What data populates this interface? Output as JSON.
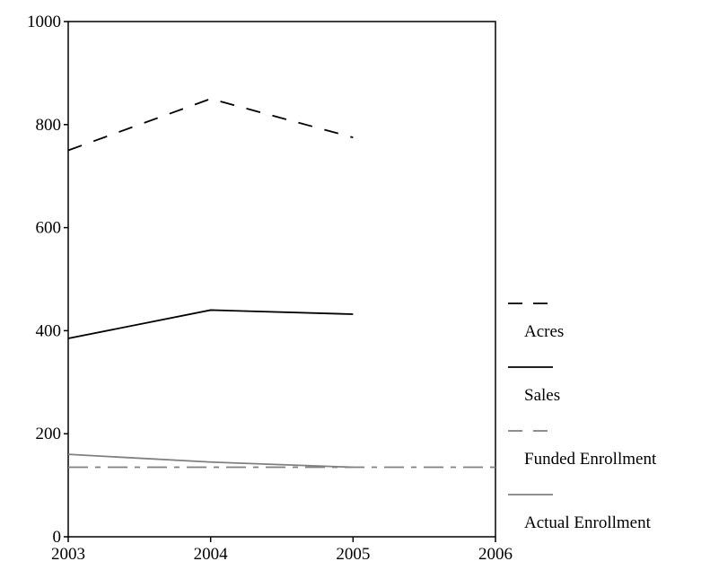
{
  "chart_data": {
    "type": "line",
    "title": "",
    "xlabel": "",
    "ylabel": "",
    "xlim": [
      2003,
      2006
    ],
    "ylim": [
      0,
      1000
    ],
    "xticks": [
      2003,
      2004,
      2005,
      2006
    ],
    "yticks": [
      0,
      200,
      400,
      600,
      800,
      1000
    ],
    "grid": false,
    "legend_position": "right",
    "series": [
      {
        "name": "Acres",
        "style": "dashed",
        "color": "#000000",
        "x": [
          2003,
          2004,
          2005
        ],
        "y": [
          750,
          850,
          775
        ]
      },
      {
        "name": "Sales",
        "style": "solid",
        "color": "#000000",
        "x": [
          2003,
          2004,
          2005
        ],
        "y": [
          385,
          440,
          432
        ]
      },
      {
        "name": "Funded Enrollment",
        "style": "dashdot",
        "color": "#808080",
        "x": [
          2003,
          2004,
          2005,
          2006
        ],
        "y": [
          135,
          135,
          135,
          135
        ]
      },
      {
        "name": "Actual Enrollment",
        "style": "solid",
        "color": "#808080",
        "x": [
          2003,
          2004,
          2005
        ],
        "y": [
          160,
          145,
          135
        ]
      }
    ]
  }
}
